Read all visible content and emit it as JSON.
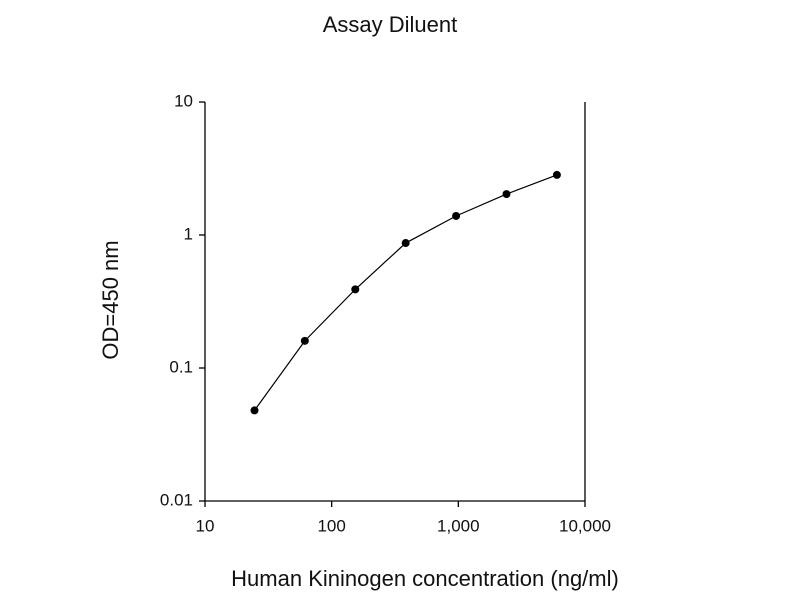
{
  "chart_data": {
    "type": "line",
    "title": "Assay Diluent",
    "x_label": "Human Kininogen concentration (ng/ml)",
    "y_label": "OD=450 nm",
    "x": [
      24.6,
      61.4,
      153.6,
      384,
      960,
      2400,
      6000
    ],
    "series": [
      {
        "name": "Assay Diluent",
        "color": "#000000",
        "values": [
          0.048,
          0.16,
          0.39,
          0.87,
          1.39,
          2.03,
          2.83
        ]
      }
    ],
    "xscale": "log",
    "yscale": "log",
    "xlim": [
      10,
      10000
    ],
    "ylim": [
      0.01,
      10
    ],
    "xticks": [
      10,
      100,
      {
        "value": 1000,
        "label": "1,000"
      },
      {
        "value": 10000,
        "label": "10,000"
      }
    ],
    "yticks": [
      0.01,
      0.1,
      1,
      10
    ]
  }
}
